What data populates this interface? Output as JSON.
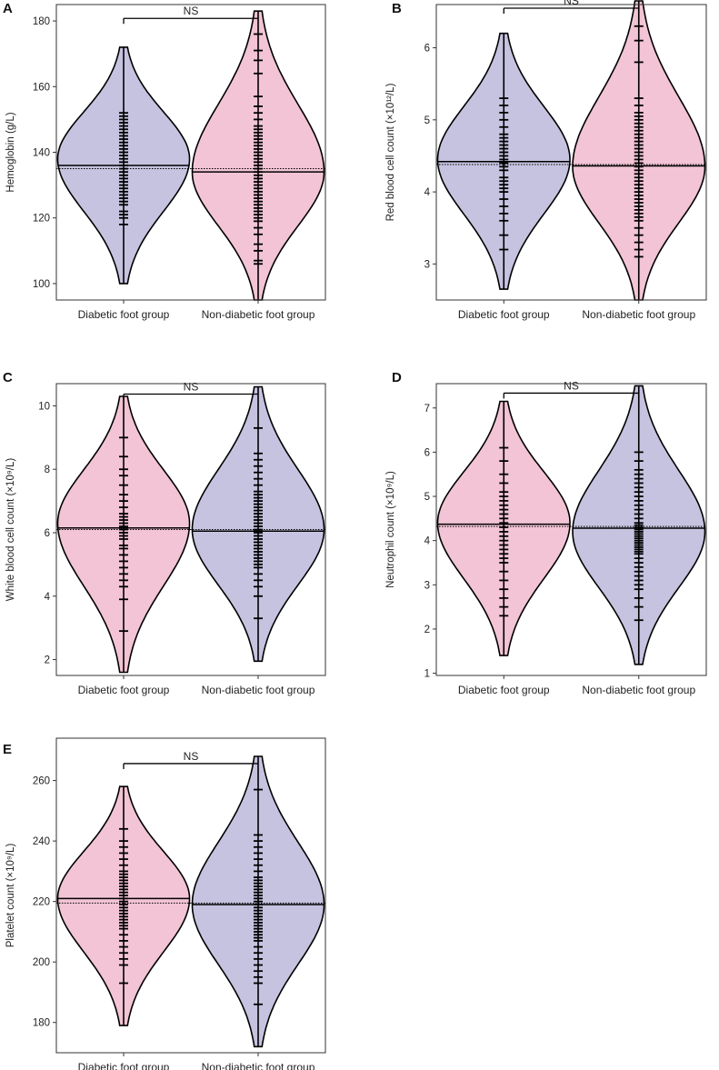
{
  "colors": {
    "pink": "#f2c4d5",
    "lavender": "#c6c3e0",
    "outline": "#000000",
    "axis": "#333333"
  },
  "chart_data": [
    {
      "panel": "A",
      "type": "violin",
      "ylabel": "Hemoglobin (g/L)",
      "ylim": [
        95,
        185
      ],
      "yticks": [
        "100",
        "120",
        "140",
        "160",
        "180"
      ],
      "categories": [
        "Diabetic foot group",
        "Non-diabetic foot group"
      ],
      "fill_colors": [
        "lavender",
        "pink"
      ],
      "means": [
        136,
        134
      ],
      "overall_mean": 135,
      "violin_range": [
        [
          100,
          172
        ],
        [
          95,
          183
        ]
      ],
      "violin_mode": [
        138,
        134
      ],
      "points": [
        [
          118,
          120,
          121,
          122,
          124,
          125,
          126,
          127,
          128,
          129,
          130,
          131,
          132,
          133,
          134,
          135,
          136,
          136,
          137,
          138,
          139,
          140,
          141,
          142,
          143,
          144,
          145,
          146,
          147,
          148,
          149,
          150,
          151,
          152
        ],
        [
          106,
          107,
          110,
          112,
          115,
          117,
          119,
          120,
          121,
          122,
          123,
          124,
          125,
          126,
          127,
          128,
          129,
          130,
          131,
          132,
          133,
          134,
          135,
          136,
          137,
          138,
          139,
          140,
          141,
          142,
          143,
          144,
          145,
          146,
          147,
          148,
          150,
          152,
          154,
          157,
          164,
          168,
          171,
          176
        ]
      ],
      "annotation": "NS"
    },
    {
      "panel": "B",
      "type": "violin",
      "ylabel": "Red blood cell count (×10¹²/L)",
      "ylim": [
        2.5,
        6.6
      ],
      "yticks": [
        "3",
        "4",
        "5",
        "6"
      ],
      "categories": [
        "Diabetic foot group",
        "Non-diabetic foot group"
      ],
      "fill_colors": [
        "lavender",
        "pink"
      ],
      "means": [
        4.42,
        4.36
      ],
      "overall_mean": 4.38,
      "violin_range": [
        [
          2.65,
          6.2
        ],
        [
          2.5,
          6.65
        ]
      ],
      "violin_mode": [
        4.45,
        4.35
      ],
      "points": [
        [
          3.2,
          3.4,
          3.6,
          3.7,
          3.8,
          3.9,
          4.0,
          4.05,
          4.1,
          4.15,
          4.2,
          4.3,
          4.35,
          4.4,
          4.45,
          4.5,
          4.55,
          4.6,
          4.65,
          4.7,
          4.75,
          4.8,
          4.9,
          5.0,
          5.1,
          5.2,
          5.3
        ],
        [
          3.1,
          3.2,
          3.3,
          3.4,
          3.5,
          3.6,
          3.65,
          3.7,
          3.75,
          3.8,
          3.85,
          3.9,
          3.95,
          4.0,
          4.05,
          4.1,
          4.15,
          4.2,
          4.25,
          4.3,
          4.35,
          4.4,
          4.45,
          4.5,
          4.55,
          4.6,
          4.65,
          4.7,
          4.75,
          4.8,
          4.85,
          4.9,
          4.95,
          5.0,
          5.05,
          5.1,
          5.2,
          5.3,
          5.8,
          6.1,
          6.3
        ]
      ],
      "annotation": "NS"
    },
    {
      "panel": "C",
      "type": "violin",
      "ylabel": "White blood cell count (×10⁹/L)",
      "ylim": [
        1.5,
        10.7
      ],
      "yticks": [
        "2",
        "4",
        "6",
        "8",
        "10"
      ],
      "categories": [
        "Diabetic foot group",
        "Non-diabetic foot group"
      ],
      "fill_colors": [
        "pink",
        "lavender"
      ],
      "means": [
        6.15,
        6.05
      ],
      "overall_mean": 6.1,
      "violin_range": [
        [
          1.6,
          10.3
        ],
        [
          1.95,
          10.6
        ]
      ],
      "violin_mode": [
        6.3,
        6.1
      ],
      "points": [
        [
          2.9,
          3.9,
          4.3,
          4.5,
          4.7,
          4.9,
          5.1,
          5.3,
          5.5,
          5.6,
          5.8,
          5.9,
          6.0,
          6.1,
          6.2,
          6.3,
          6.4,
          6.5,
          6.6,
          6.8,
          7.0,
          7.2,
          7.5,
          7.8,
          8.0,
          8.4,
          9.0
        ],
        [
          3.3,
          4.0,
          4.3,
          4.5,
          4.7,
          4.9,
          5.0,
          5.1,
          5.2,
          5.3,
          5.4,
          5.5,
          5.6,
          5.7,
          5.8,
          5.9,
          6.0,
          6.1,
          6.2,
          6.3,
          6.4,
          6.5,
          6.6,
          6.7,
          6.8,
          6.9,
          7.0,
          7.1,
          7.2,
          7.3,
          7.5,
          7.7,
          7.9,
          8.1,
          8.3,
          8.5,
          9.3
        ]
      ],
      "annotation": "NS"
    },
    {
      "panel": "D",
      "type": "violin",
      "ylabel": "Neutrophil count (×10⁹/L)",
      "ylim": [
        0.95,
        7.55
      ],
      "yticks": [
        "1",
        "2",
        "3",
        "4",
        "5",
        "6",
        "7"
      ],
      "categories": [
        "Diabetic foot group",
        "Non-diabetic foot group"
      ],
      "fill_colors": [
        "pink",
        "lavender"
      ],
      "means": [
        4.37,
        4.28
      ],
      "overall_mean": 4.32,
      "violin_range": [
        [
          1.4,
          7.15
        ],
        [
          1.2,
          7.5
        ]
      ],
      "violin_mode": [
        4.4,
        4.2
      ],
      "points": [
        [
          2.3,
          2.5,
          2.7,
          2.9,
          3.1,
          3.3,
          3.5,
          3.6,
          3.7,
          3.8,
          3.9,
          4.0,
          4.1,
          4.2,
          4.3,
          4.4,
          4.5,
          4.6,
          4.7,
          4.8,
          4.9,
          5.0,
          5.1,
          5.3,
          5.5,
          5.8,
          6.1
        ],
        [
          2.2,
          2.5,
          2.7,
          2.9,
          3.0,
          3.1,
          3.2,
          3.3,
          3.4,
          3.5,
          3.6,
          3.7,
          3.75,
          3.8,
          3.85,
          3.9,
          3.95,
          4.0,
          4.05,
          4.1,
          4.15,
          4.2,
          4.25,
          4.3,
          4.35,
          4.4,
          4.5,
          4.6,
          4.7,
          4.8,
          4.9,
          5.0,
          5.1,
          5.2,
          5.3,
          5.4,
          5.5,
          5.6,
          5.8,
          6.0
        ]
      ],
      "annotation": "NS"
    },
    {
      "panel": "E",
      "type": "violin",
      "ylabel": "Platelet count (×10⁹/L)",
      "ylim": [
        170,
        274
      ],
      "yticks": [
        "180",
        "200",
        "220",
        "240",
        "260"
      ],
      "categories": [
        "Diabetic foot group",
        "Non-diabetic foot group"
      ],
      "fill_colors": [
        "pink",
        "lavender"
      ],
      "means": [
        221,
        219
      ],
      "overall_mean": 219.5,
      "violin_range": [
        [
          179,
          258
        ],
        [
          172,
          268
        ]
      ],
      "violin_mode": [
        221,
        219
      ],
      "points": [
        [
          193,
          199,
          201,
          203,
          205,
          207,
          209,
          211,
          212,
          213,
          214,
          215,
          216,
          217,
          218,
          219,
          220,
          221,
          222,
          223,
          224,
          225,
          226,
          227,
          228,
          229,
          230,
          232,
          234,
          236,
          238,
          240,
          244
        ],
        [
          186,
          193,
          195,
          197,
          199,
          201,
          203,
          205,
          207,
          208,
          209,
          210,
          211,
          212,
          213,
          214,
          215,
          216,
          217,
          218,
          219,
          220,
          221,
          222,
          223,
          224,
          225,
          226,
          227,
          228,
          230,
          232,
          234,
          236,
          238,
          240,
          242,
          257
        ]
      ],
      "annotation": "NS"
    }
  ]
}
